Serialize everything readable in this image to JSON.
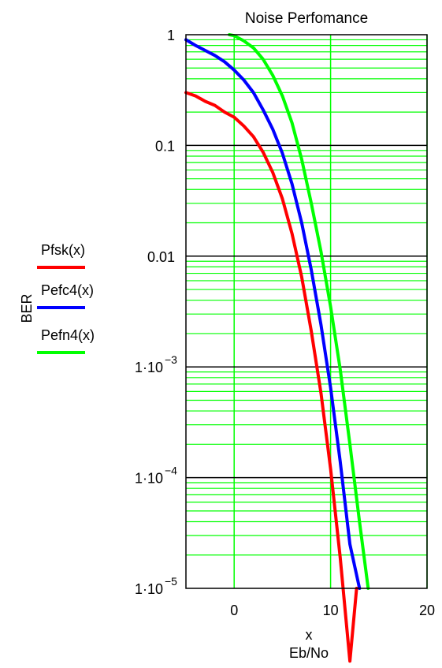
{
  "chart_data": {
    "type": "line",
    "title": "Noise Perfomance",
    "xlabel": "x",
    "xlabel2": "Eb/No",
    "ylabel": "BER",
    "xlim": [
      -5,
      20
    ],
    "ylim": [
      1e-05,
      1
    ],
    "yscale": "log",
    "grid": true,
    "legend_position": "left",
    "x_ticks": [
      {
        "value": 0,
        "label": "0"
      },
      {
        "value": 10,
        "label": "10"
      },
      {
        "value": 20,
        "label": "20"
      }
    ],
    "y_ticks": [
      {
        "value": 1,
        "mantissa": "1",
        "exp": ""
      },
      {
        "value": 0.1,
        "mantissa": "0.1",
        "exp": ""
      },
      {
        "value": 0.01,
        "mantissa": "0.01",
        "exp": ""
      },
      {
        "value": 0.001,
        "mantissa": "1·10",
        "exp": "−3"
      },
      {
        "value": 0.0001,
        "mantissa": "1·10",
        "exp": "−4"
      },
      {
        "value": 1e-05,
        "mantissa": "1·10",
        "exp": "−5"
      }
    ],
    "x": [
      -5,
      -4,
      -3,
      -2,
      -1,
      0,
      1,
      2,
      3,
      4,
      5,
      6,
      7,
      8,
      9,
      10,
      11,
      12,
      13,
      14
    ],
    "series": [
      {
        "name": "Pfsk(x)",
        "color": "#ff0000",
        "x": [
          -5,
          -4,
          -3,
          -2,
          -1,
          0,
          1,
          2,
          3,
          4,
          5,
          6,
          7,
          8,
          9,
          10,
          11,
          12,
          12.7
        ],
        "values": [
          0.3,
          0.28,
          0.25,
          0.23,
          0.2,
          0.18,
          0.15,
          0.12,
          0.087,
          0.057,
          0.033,
          0.016,
          0.0065,
          0.0021,
          0.00058,
          0.00012,
          1.9e-05,
          2.2e-06,
          1e-05
        ]
      },
      {
        "name": "Pefc4(x)",
        "color": "#0000ff",
        "x": [
          -5,
          -4,
          -3,
          -2,
          -1,
          0,
          1,
          2,
          3,
          4,
          5,
          6,
          7,
          8,
          9,
          10,
          11,
          12,
          13
        ],
        "values": [
          0.9,
          0.8,
          0.72,
          0.65,
          0.57,
          0.48,
          0.39,
          0.3,
          0.21,
          0.14,
          0.085,
          0.045,
          0.02,
          0.0075,
          0.0024,
          0.00065,
          0.00014,
          2.5e-05,
          1e-05
        ]
      },
      {
        "name": "Pefn4(x)",
        "color": "#00ff00",
        "x": [
          -0.5,
          0,
          1,
          2,
          3,
          4,
          5,
          6,
          7,
          8,
          9,
          10,
          11,
          12,
          13,
          13.9
        ],
        "values": [
          1,
          0.98,
          0.88,
          0.76,
          0.6,
          0.43,
          0.28,
          0.16,
          0.075,
          0.03,
          0.011,
          0.0035,
          0.00095,
          0.0002,
          4e-05,
          1e-05
        ]
      }
    ],
    "colors": {
      "minor_grid": "#00ff00",
      "major_grid": "#000000",
      "frame": "#000000"
    }
  }
}
